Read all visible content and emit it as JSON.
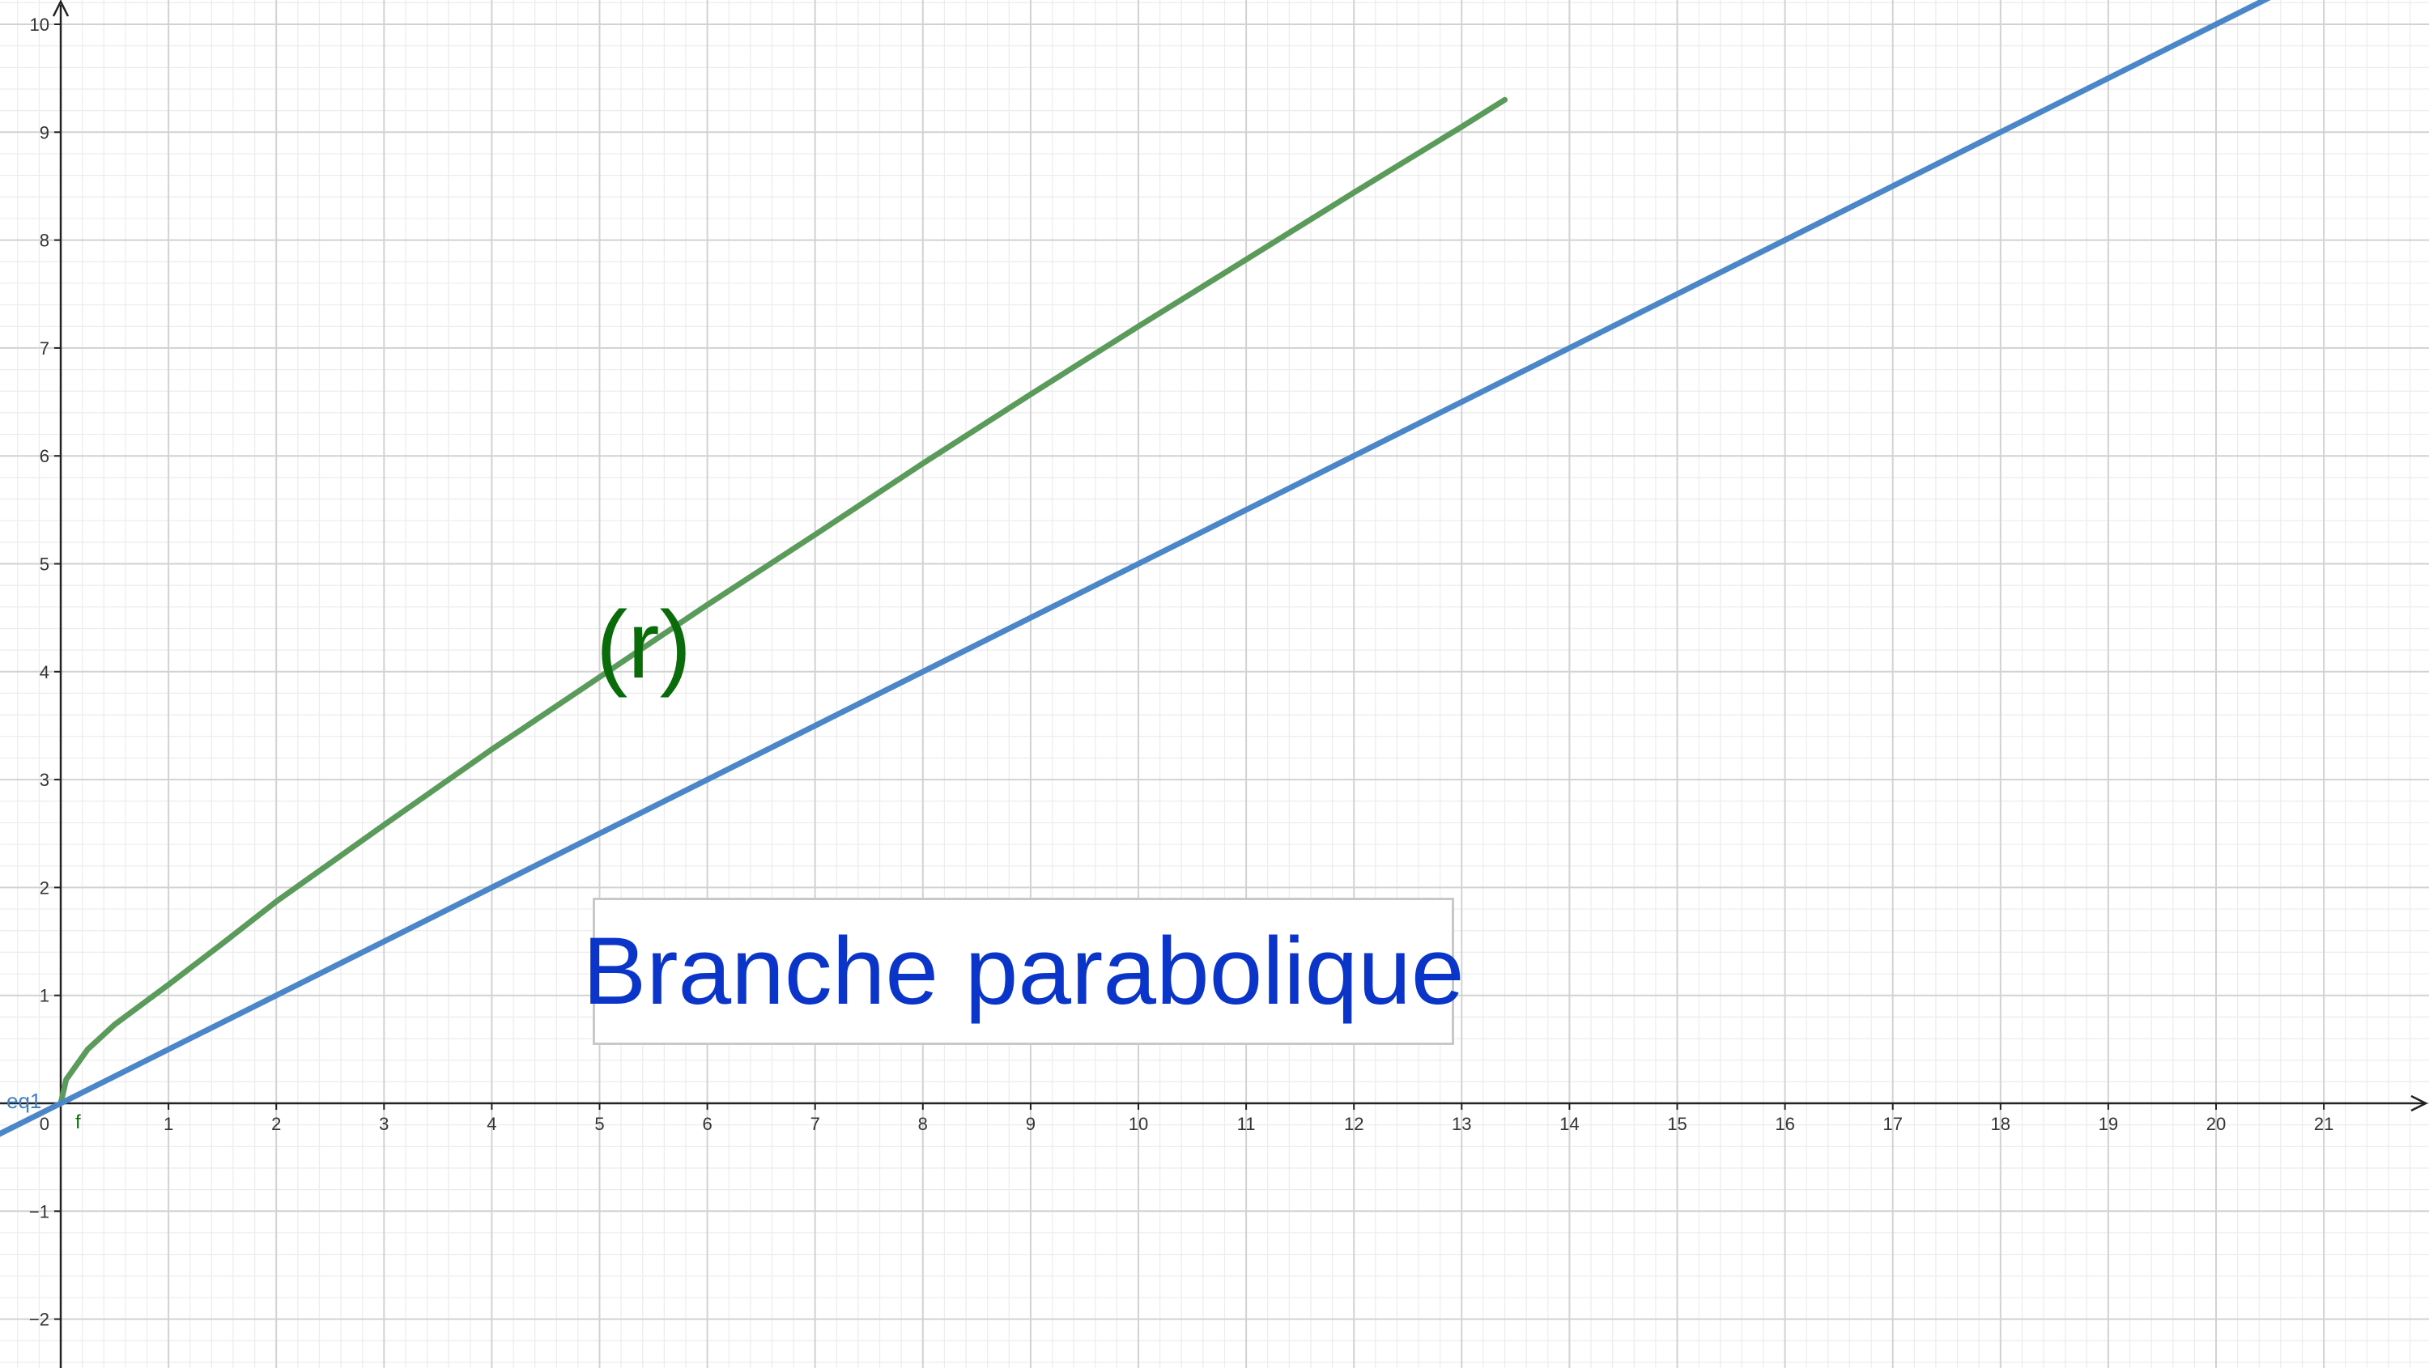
{
  "chart_data": {
    "type": "line",
    "title": "",
    "xlabel": "",
    "ylabel": "",
    "xlim": [
      -0.58,
      22.4
    ],
    "ylim": [
      -2.45,
      10.3
    ],
    "grid": true,
    "minor_grid": true,
    "x_ticks": [
      0,
      1,
      2,
      3,
      4,
      5,
      6,
      7,
      8,
      9,
      10,
      11,
      12,
      13,
      14,
      15,
      16,
      17,
      18,
      19,
      20,
      21
    ],
    "x_tick_labels": [
      "0",
      "1",
      "2",
      "3",
      "4",
      "5",
      "6",
      "7",
      "8",
      "9",
      "10",
      "11",
      "12",
      "13",
      "14",
      "15",
      "16",
      "17",
      "18",
      "19",
      "20",
      "21"
    ],
    "y_ticks": [
      -2,
      -1,
      1,
      2,
      3,
      4,
      5,
      6,
      7,
      8,
      9,
      10
    ],
    "y_tick_labels": [
      "−2",
      "−1",
      "1",
      "2",
      "3",
      "4",
      "5",
      "6",
      "7",
      "8",
      "9",
      "10"
    ],
    "origin_label": "0",
    "series": [
      {
        "name": "f",
        "color": "#5a9a5a",
        "x": [
          0,
          0.05,
          0.25,
          0.5,
          1,
          1.5,
          2,
          3,
          4,
          5,
          6,
          7,
          8,
          9,
          10,
          11,
          12,
          13,
          13.4
        ],
        "y": [
          0,
          0.22,
          0.5,
          0.73,
          1.1,
          1.48,
          1.87,
          2.58,
          3.28,
          3.95,
          4.62,
          5.27,
          5.93,
          6.57,
          7.2,
          7.82,
          8.44,
          9.05,
          9.3
        ]
      },
      {
        "name": "eq1",
        "color": "#4a86c8",
        "x": [
          -0.58,
          22.4
        ],
        "y": [
          -0.29,
          11.2
        ]
      }
    ],
    "annotations": [
      {
        "text": "(r)",
        "color": "#0a6b0a"
      },
      {
        "text": "Branche parabolique",
        "color": "#0b35c8"
      }
    ]
  }
}
